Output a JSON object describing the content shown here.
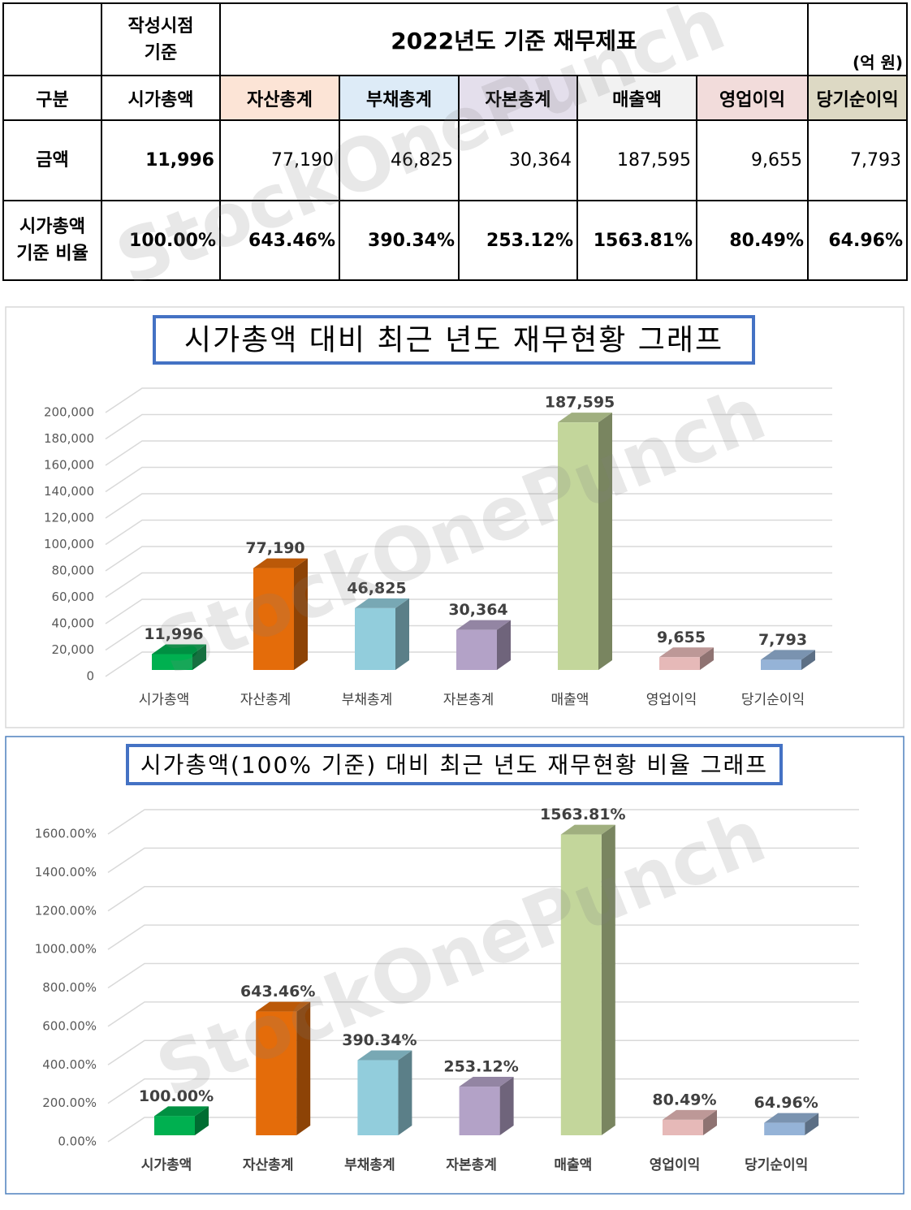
{
  "table": {
    "corner_label": [
      "작성시점",
      "기준"
    ],
    "title": "2022년도 기준 재무제표",
    "unit": "(억 원)",
    "header": [
      "구분",
      "시가총액",
      "자산총계",
      "부채총계",
      "자본총계",
      "매출액",
      "영업이익",
      "당기순이익"
    ],
    "rows": [
      {
        "label": [
          "금액"
        ],
        "cells": [
          "11,996",
          "77,190",
          "46,825",
          "30,364",
          "187,595",
          "9,655",
          "7,793"
        ]
      },
      {
        "label": [
          "시가총액",
          "기준 비율"
        ],
        "cells": [
          "100.00%",
          "643.46%",
          "390.34%",
          "253.12%",
          "1563.81%",
          "80.49%",
          "64.96%"
        ]
      }
    ]
  },
  "watermark": "StockOnePunch",
  "chart_data": [
    {
      "type": "bar3d",
      "title": "시가총액 대비 최근 년도 재무현황 그래프",
      "categories": [
        "시가총액",
        "자산총계",
        "부채총계",
        "자본총계",
        "매출액",
        "영업이익",
        "당기순이익"
      ],
      "values": [
        11996,
        77190,
        46825,
        30364,
        187595,
        9655,
        7793
      ],
      "value_labels": [
        "11,996",
        "77,190",
        "46,825",
        "30,364",
        "187,595",
        "9,655",
        "7,793"
      ],
      "colors": [
        "#00b050",
        "#e46c0a",
        "#92cddc",
        "#b3a2c7",
        "#c3d69b",
        "#e6b9b8",
        "#95b3d7"
      ],
      "ylim": [
        0,
        200000
      ],
      "yticks": [
        0,
        {
          "value": 20000,
          "label": "20,000"
        },
        {
          "value": 40000,
          "label": "40,000"
        },
        {
          "value": 60000,
          "label": "60,000"
        },
        {
          "value": 80000,
          "label": "80,000"
        },
        {
          "value": 100000,
          "label": "100,000"
        },
        {
          "value": 120000,
          "label": "120,000"
        },
        {
          "value": 140000,
          "label": "140,000"
        },
        {
          "value": 160000,
          "label": "160,000"
        },
        {
          "value": 180000,
          "label": "180,000"
        },
        {
          "value": 200000,
          "label": "200,000"
        }
      ],
      "grid": true
    },
    {
      "type": "bar3d",
      "title": "시가총액(100% 기준) 대비 최근 년도 재무현황 비율 그래프",
      "categories": [
        "시가총액",
        "자산총계",
        "부채총계",
        "자본총계",
        "매출액",
        "영업이익",
        "당기순이익"
      ],
      "values": [
        100,
        643.46,
        390.34,
        253.12,
        1563.81,
        80.49,
        64.96
      ],
      "value_labels": [
        "100.00%",
        "643.46%",
        "390.34%",
        "253.12%",
        "1563.81%",
        "80.49%",
        "64.96%"
      ],
      "colors": [
        "#00b050",
        "#e46c0a",
        "#92cddc",
        "#b3a2c7",
        "#c3d69b",
        "#e6b9b8",
        "#95b3d7"
      ],
      "ylim": [
        0,
        1600
      ],
      "yticks": [
        {
          "value": 0,
          "label": "0.00%"
        },
        {
          "value": 200,
          "label": "200.00%"
        },
        {
          "value": 400,
          "label": "400.00%"
        },
        {
          "value": 600,
          "label": "600.00%"
        },
        {
          "value": 800,
          "label": "800.00%"
        },
        {
          "value": 1000,
          "label": "1000.00%"
        },
        {
          "value": 1200,
          "label": "1200.00%"
        },
        {
          "value": 1400,
          "label": "1400.00%"
        },
        {
          "value": 1600,
          "label": "1600.00%"
        }
      ],
      "grid": true
    }
  ]
}
